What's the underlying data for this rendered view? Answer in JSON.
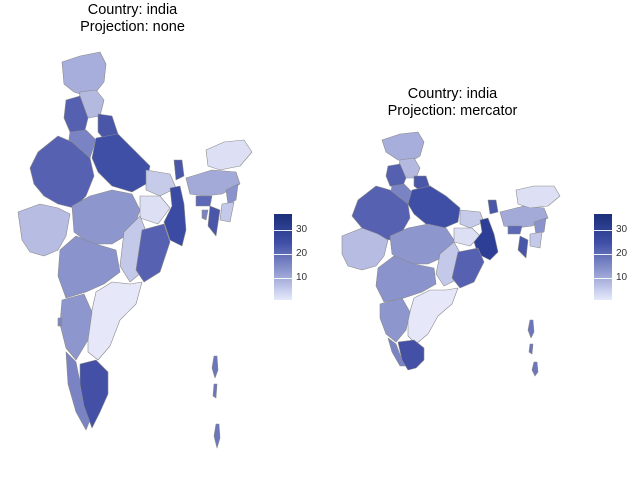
{
  "panels": [
    {
      "title_line1": "Country: india",
      "title_line2": "Projection: none"
    },
    {
      "title_line1": "Country: india",
      "title_line2": "Projection: mercator"
    }
  ],
  "legend": {
    "ticks": [
      "10",
      "20",
      "30"
    ],
    "colors": {
      "low": "#e6e9fb",
      "mid": "#8f99cf",
      "high": "#1b2f7a"
    }
  }
}
